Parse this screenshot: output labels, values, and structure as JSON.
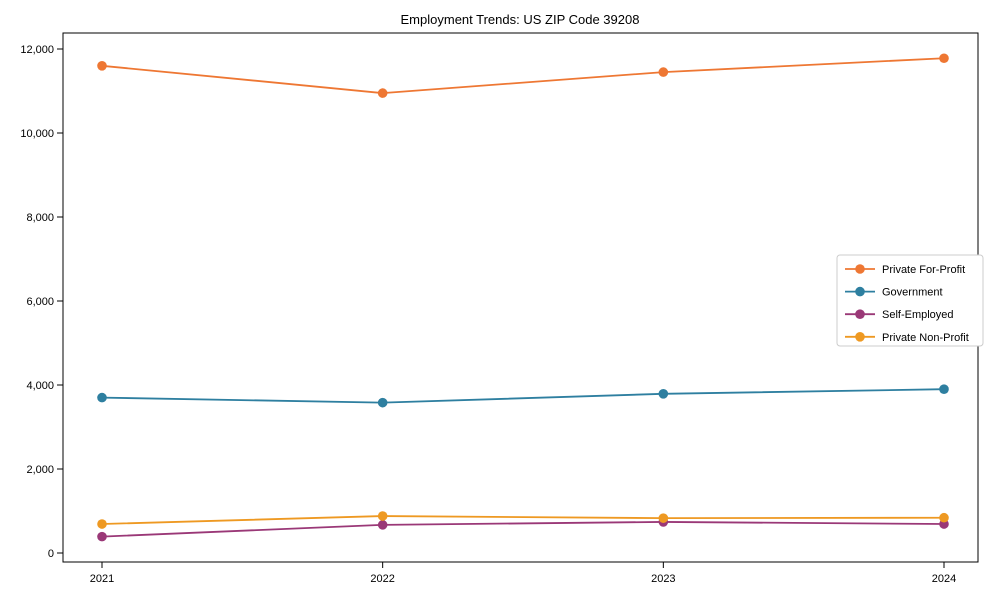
{
  "title": "Employment Trends: US ZIP Code 39208",
  "chart_data": {
    "type": "line",
    "title": "Employment Trends: US ZIP Code 39208",
    "categories": [
      "2021",
      "2022",
      "2023",
      "2024"
    ],
    "x": [
      2021,
      2022,
      2023,
      2024
    ],
    "series": [
      {
        "name": "Private For-Profit",
        "color": "#ee7733",
        "values": [
          11600,
          10950,
          11450,
          11780
        ]
      },
      {
        "name": "Government",
        "color": "#2e7fa0",
        "values": [
          3700,
          3580,
          3790,
          3900
        ]
      },
      {
        "name": "Self-Employed",
        "color": "#9a3877",
        "values": [
          390,
          670,
          740,
          690
        ]
      },
      {
        "name": "Private Non-Profit",
        "color": "#ee9922",
        "values": [
          690,
          880,
          830,
          840
        ]
      }
    ],
    "xlabel": "",
    "ylabel": "",
    "ylim": [
      0,
      12000
    ],
    "yticks": [
      0,
      2000,
      4000,
      6000,
      8000,
      10000,
      12000
    ],
    "ytick_labels": [
      "0",
      "2,000",
      "4,000",
      "6,000",
      "8,000",
      "10,000",
      "12,000"
    ],
    "grid": false,
    "marker": "circle",
    "legend_position": "center right"
  },
  "colors": {
    "background": "#ffffff",
    "axis": "#000000",
    "legend_border": "#cccccc",
    "legend_background": "#ffffff"
  }
}
